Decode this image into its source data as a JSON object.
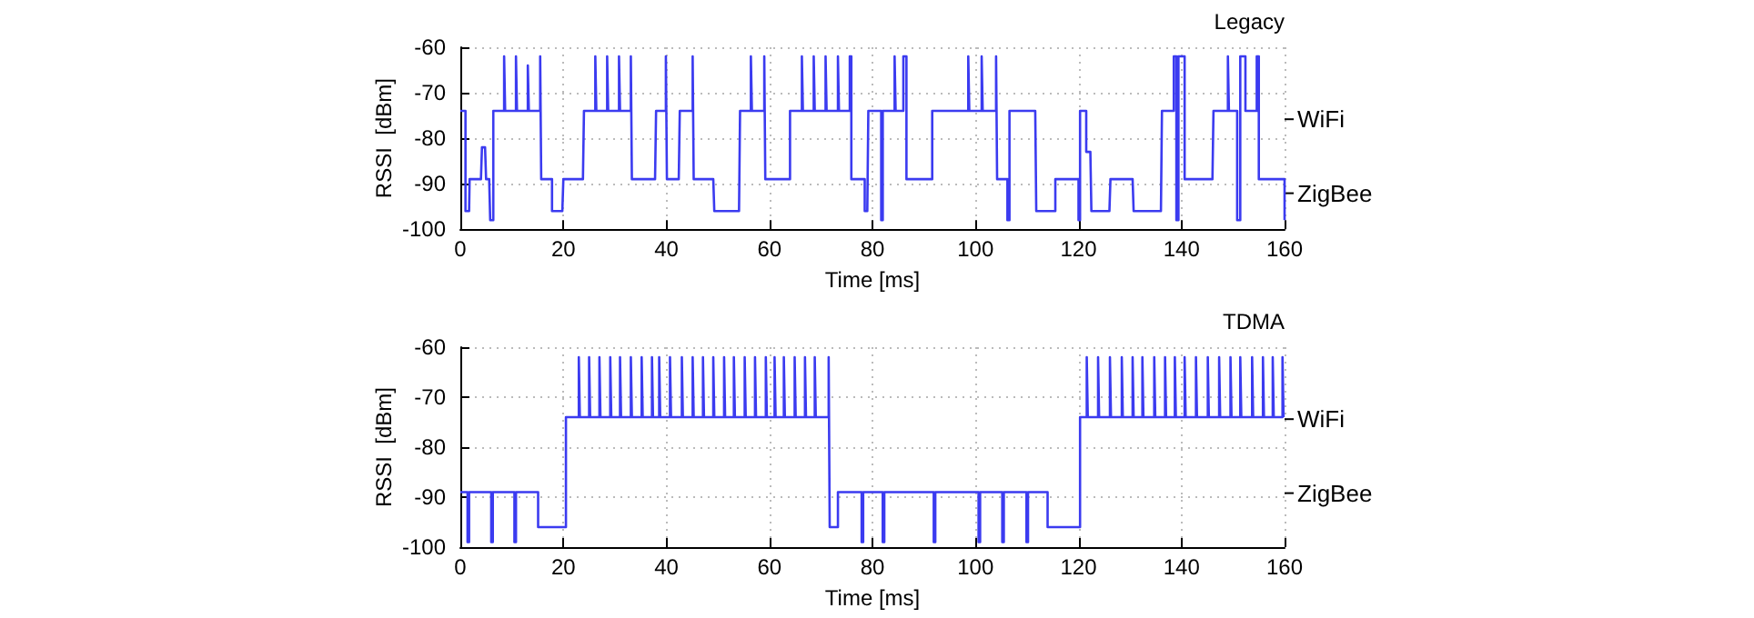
{
  "chart_data": [
    {
      "type": "step",
      "title": "Legacy",
      "xlabel": "Time [ms]",
      "ylabel": "RSSI  [dBm]",
      "xlim": [
        0,
        160
      ],
      "xticks": [
        0,
        20,
        40,
        60,
        80,
        100,
        120,
        140,
        160
      ],
      "ylim": [
        -100,
        -60
      ],
      "yticks": [
        -100,
        -90,
        -80,
        -70,
        -60
      ],
      "annotations": [
        "WiFi",
        "ZigBee"
      ],
      "grid": true,
      "marker": "none",
      "x": [
        0,
        0.6,
        1,
        1.7,
        1.8,
        4,
        4.2,
        4.8,
        5,
        5.6,
        5.8,
        6.4,
        8.5,
        8.7,
        10.8,
        11,
        13.1,
        13.3,
        15.5,
        15.7,
        17.4,
        17.8,
        19.8,
        20,
        23.8,
        24,
        26.2,
        26.4,
        28.5,
        28.7,
        30.8,
        31,
        33.1,
        33.3,
        37.8,
        38,
        39.9,
        40.1,
        42.4,
        42.6,
        44.8,
        45.1,
        45.3,
        49.1,
        49.3,
        54.1,
        54.3,
        56.4,
        56.6,
        59,
        59.2,
        63.4,
        64,
        66.3,
        66.5,
        68.6,
        68.8,
        70.9,
        71.1,
        73.3,
        73.5,
        75.6,
        75.9,
        78.1,
        78.5,
        79,
        79.2,
        81.4,
        81.7,
        82,
        84.3,
        84.5,
        86,
        86.6,
        91.3,
        91.6,
        95.3,
        98.6,
        98.8,
        101.2,
        101.4,
        104,
        104.2,
        105.8,
        106.2,
        106.6,
        111.6,
        111.8,
        115,
        115.5,
        119.5,
        120,
        120.3,
        121,
        121.5,
        122.3,
        122.5,
        126,
        126.2,
        130.5,
        130.7,
        136,
        136.2,
        138,
        138.5,
        139,
        139.4,
        140.6,
        146,
        146.2,
        149,
        149.2,
        150.8,
        151.4,
        152.4,
        154.6,
        155,
        159.6,
        160
      ],
      "series": [
        {
          "color": "#3b3bf0",
          "values": [
            -74,
            -74,
            -96,
            -96,
            -89,
            -89,
            -82,
            -82,
            -89,
            -89,
            -98,
            -74,
            -62,
            -74,
            -62,
            -74,
            -64,
            -74,
            -62,
            -89,
            -89,
            -96,
            -96,
            -89,
            -89,
            -74,
            -62,
            -74,
            -62,
            -74,
            -62,
            -74,
            -62,
            -89,
            -89,
            -74,
            -62,
            -89,
            -89,
            -74,
            -74,
            -62,
            -89,
            -89,
            -96,
            -96,
            -74,
            -62,
            -74,
            -62,
            -89,
            -89,
            -74,
            -62,
            -74,
            -62,
            -74,
            -62,
            -74,
            -62,
            -74,
            -62,
            -89,
            -89,
            -96,
            -96,
            -74,
            -74,
            -98,
            -74,
            -62,
            -74,
            -62,
            -89,
            -89,
            -74,
            -74,
            -62,
            -74,
            -62,
            -74,
            -62,
            -89,
            -89,
            -98,
            -74,
            -74,
            -96,
            -96,
            -89,
            -89,
            -98,
            -74,
            -74,
            -83,
            -83,
            -96,
            -96,
            -89,
            -89,
            -96,
            -96,
            -74,
            -74,
            -62,
            -98,
            -62,
            -89,
            -89,
            -74,
            -62,
            -74,
            -98,
            -62,
            -74,
            -62,
            -89,
            -89,
            -98
          ]
        }
      ]
    },
    {
      "type": "step",
      "title": "TDMA",
      "xlabel": "Time [ms]",
      "ylabel": "RSSI  [dBm]",
      "xlim": [
        0,
        160
      ],
      "xticks": [
        0,
        20,
        40,
        60,
        80,
        100,
        120,
        140,
        160
      ],
      "ylim": [
        -100,
        -60
      ],
      "yticks": [
        -100,
        -90,
        -80,
        -70,
        -60
      ],
      "annotations": [
        "WiFi",
        "ZigBee"
      ],
      "grid": true,
      "marker": "none",
      "x": [
        0,
        1.4,
        1.7,
        6,
        6.3,
        10.5,
        10.8,
        15.1,
        20.5,
        23,
        23.2,
        25,
        25.2,
        27,
        27.2,
        29.1,
        29.3,
        31,
        31.2,
        33.1,
        33.3,
        35.2,
        35.4,
        37.2,
        37.4,
        38.6,
        38.8,
        40.7,
        40.9,
        43,
        43.2,
        45.1,
        45.3,
        47.1,
        47.3,
        49.1,
        49.3,
        51.2,
        51.4,
        53.1,
        53.3,
        55.2,
        55.4,
        57.2,
        57.4,
        59.3,
        59.5,
        61,
        61.2,
        62.8,
        63,
        64.9,
        65.1,
        66.9,
        67.1,
        68.8,
        69,
        71.5,
        71.7,
        73.3,
        77.9,
        78.2,
        82,
        82.3,
        91.9,
        92.2,
        100.6,
        100.9,
        105.2,
        105.5,
        109.9,
        110.2,
        114,
        120.3,
        121.6,
        121.8,
        123.8,
        124,
        126.1,
        126.3,
        128.4,
        128.6,
        130.5,
        130.7,
        132.4,
        132.6,
        134.7,
        134.9,
        136.8,
        137,
        138.7,
        138.9,
        140.6,
        140.8,
        142.8,
        143,
        145.1,
        145.3,
        147.3,
        147.5,
        149.5,
        149.7,
        151.4,
        151.6,
        153.7,
        153.9,
        155.8,
        156,
        157.7,
        157.9,
        159.6,
        159.8,
        160
      ],
      "series": [
        {
          "color": "#3b3bf0",
          "values": [
            -89,
            -99,
            -89,
            -99,
            -89,
            -99,
            -89,
            -96,
            -74,
            -62,
            -74,
            -62,
            -74,
            -62,
            -74,
            -62,
            -74,
            -62,
            -74,
            -62,
            -74,
            -62,
            -74,
            -62,
            -74,
            -62,
            -74,
            -62,
            -74,
            -62,
            -74,
            -62,
            -74,
            -62,
            -74,
            -62,
            -74,
            -62,
            -74,
            -62,
            -74,
            -62,
            -74,
            -62,
            -74,
            -62,
            -74,
            -62,
            -74,
            -62,
            -74,
            -62,
            -74,
            -62,
            -74,
            -62,
            -74,
            -62,
            -96,
            -89,
            -99,
            -89,
            -99,
            -89,
            -99,
            -89,
            -99,
            -89,
            -99,
            -89,
            -99,
            -89,
            -96,
            -74,
            -62,
            -74,
            -62,
            -74,
            -62,
            -74,
            -62,
            -74,
            -62,
            -74,
            -62,
            -74,
            -62,
            -74,
            -62,
            -74,
            -62,
            -74,
            -62,
            -74,
            -62,
            -74,
            -62,
            -74,
            -62,
            -74,
            -62,
            -74,
            -62,
            -74,
            -62,
            -74,
            -62,
            -74,
            -62,
            -74,
            -62,
            -74,
            -74
          ]
        }
      ]
    }
  ]
}
